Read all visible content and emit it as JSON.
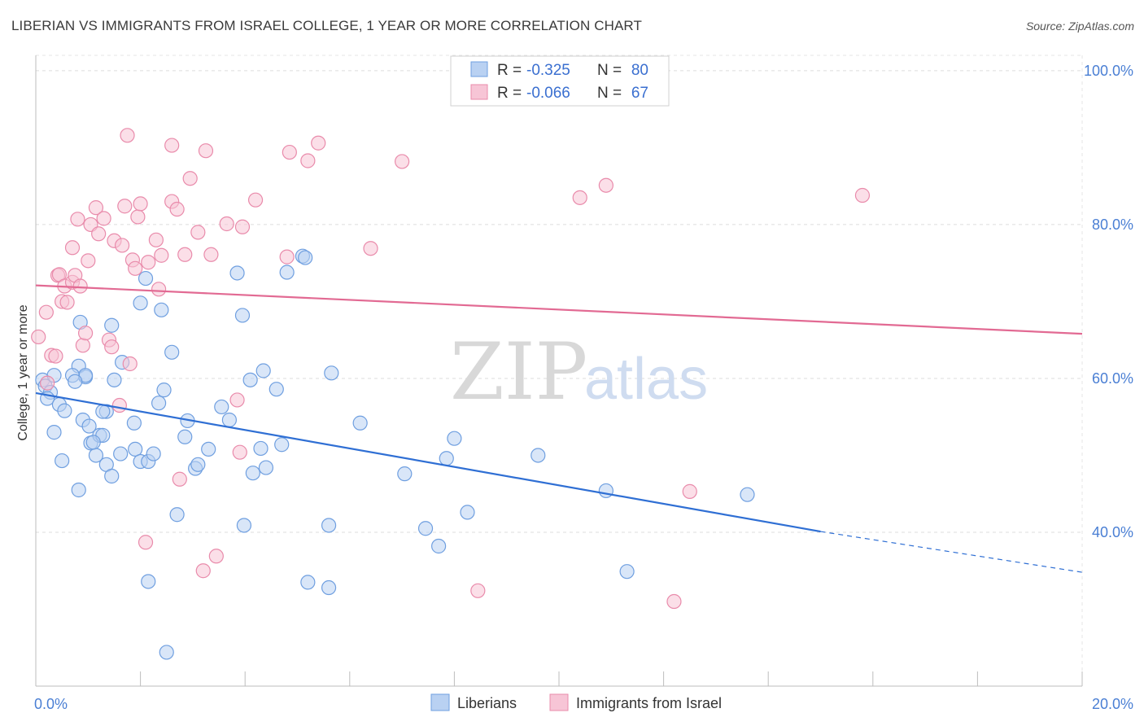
{
  "title": "LIBERIAN VS IMMIGRANTS FROM ISRAEL COLLEGE, 1 YEAR OR MORE CORRELATION CHART",
  "source": "Source: ZipAtlas.com",
  "watermark": {
    "zip": "ZIP",
    "atlas": "atlas"
  },
  "chart_data": {
    "type": "scatter",
    "title": "LIBERIAN VS IMMIGRANTS FROM ISRAEL COLLEGE, 1 YEAR OR MORE CORRELATION CHART",
    "xlabel": "",
    "ylabel": "College, 1 year or more",
    "xlim": [
      0,
      20
    ],
    "ylim": [
      20,
      102
    ],
    "x_ticks": [
      0,
      2,
      4,
      6,
      8,
      10,
      12,
      14,
      16,
      18,
      20
    ],
    "x_tick_labels": {
      "0": "0.0%",
      "20": "20.0%"
    },
    "y_ticks": [
      40,
      60,
      80,
      100
    ],
    "y_tick_labels": [
      "40.0%",
      "60.0%",
      "80.0%",
      "100.0%"
    ],
    "grid": true,
    "legend_placement": "top-center",
    "stats": [
      {
        "r_label": "R =",
        "r": "-0.325",
        "n_label": "N =",
        "n": "80"
      },
      {
        "r_label": "R =",
        "r": "-0.066",
        "n_label": "N =",
        "n": "67"
      }
    ],
    "series": [
      {
        "name": "Liberians",
        "color": "#6f9fe0",
        "fill": "#b9d1f2",
        "trend": {
          "x0": 0,
          "y0": 58.1,
          "x1": 15,
          "y1": 40.1,
          "dash_to_x": 20,
          "dash_to_y": 34.8
        },
        "points": [
          [
            0.13,
            59.8
          ],
          [
            0.18,
            59.0
          ],
          [
            0.28,
            58.2
          ],
          [
            0.22,
            57.4
          ],
          [
            0.45,
            56.6
          ],
          [
            0.55,
            55.8
          ],
          [
            0.35,
            53.0
          ],
          [
            0.5,
            49.3
          ],
          [
            0.82,
            61.6
          ],
          [
            0.95,
            60.2
          ],
          [
            1.5,
            59.8
          ],
          [
            1.65,
            62.1
          ],
          [
            0.95,
            60.4
          ],
          [
            0.7,
            60.4
          ],
          [
            0.75,
            59.6
          ],
          [
            0.9,
            54.6
          ],
          [
            1.02,
            53.8
          ],
          [
            1.05,
            51.6
          ],
          [
            1.15,
            50.0
          ],
          [
            1.22,
            52.6
          ],
          [
            1.28,
            52.6
          ],
          [
            1.35,
            48.8
          ],
          [
            1.45,
            47.3
          ],
          [
            1.62,
            50.2
          ],
          [
            1.35,
            55.7
          ],
          [
            0.85,
            67.3
          ],
          [
            1.45,
            66.9
          ],
          [
            0.82,
            45.5
          ],
          [
            1.9,
            50.8
          ],
          [
            1.88,
            54.2
          ],
          [
            2.0,
            49.2
          ],
          [
            2.15,
            49.2
          ],
          [
            2.25,
            50.2
          ],
          [
            2.35,
            56.8
          ],
          [
            2.45,
            58.5
          ],
          [
            2.6,
            63.4
          ],
          [
            2.0,
            69.8
          ],
          [
            2.4,
            68.9
          ],
          [
            2.7,
            42.3
          ],
          [
            2.85,
            52.4
          ],
          [
            2.9,
            54.5
          ],
          [
            3.05,
            48.3
          ],
          [
            3.1,
            48.8
          ],
          [
            3.3,
            50.8
          ],
          [
            3.55,
            56.3
          ],
          [
            3.7,
            54.6
          ],
          [
            3.85,
            73.7
          ],
          [
            3.95,
            68.2
          ],
          [
            3.98,
            40.9
          ],
          [
            4.15,
            47.7
          ],
          [
            4.1,
            59.8
          ],
          [
            4.3,
            50.9
          ],
          [
            4.4,
            48.4
          ],
          [
            4.35,
            61.0
          ],
          [
            4.6,
            58.6
          ],
          [
            4.7,
            51.4
          ],
          [
            4.8,
            73.8
          ],
          [
            5.1,
            75.9
          ],
          [
            5.15,
            75.7
          ],
          [
            5.2,
            33.5
          ],
          [
            5.6,
            32.8
          ],
          [
            5.6,
            40.9
          ],
          [
            5.65,
            60.7
          ],
          [
            6.2,
            54.2
          ],
          [
            7.05,
            47.6
          ],
          [
            7.45,
            40.5
          ],
          [
            7.7,
            38.2
          ],
          [
            7.85,
            49.6
          ],
          [
            8.0,
            52.2
          ],
          [
            8.25,
            42.6
          ],
          [
            9.6,
            50.0
          ],
          [
            10.9,
            45.4
          ],
          [
            11.3,
            34.9
          ],
          [
            13.6,
            44.9
          ],
          [
            2.1,
            73.0
          ],
          [
            0.35,
            60.4
          ],
          [
            2.15,
            33.6
          ],
          [
            2.5,
            24.4
          ],
          [
            1.1,
            51.7
          ],
          [
            1.28,
            55.7
          ]
        ]
      },
      {
        "name": "Immigrants from Israel",
        "color": "#e98bab",
        "fill": "#f7c5d6",
        "trend": {
          "x0": 0,
          "y0": 72.1,
          "x1": 20,
          "y1": 65.8
        },
        "points": [
          [
            0.05,
            65.4
          ],
          [
            0.2,
            68.6
          ],
          [
            0.22,
            59.4
          ],
          [
            0.3,
            63.0
          ],
          [
            0.38,
            62.9
          ],
          [
            0.42,
            73.4
          ],
          [
            0.45,
            73.5
          ],
          [
            0.5,
            70.0
          ],
          [
            0.55,
            72.0
          ],
          [
            0.6,
            69.9
          ],
          [
            0.7,
            72.5
          ],
          [
            0.7,
            77.0
          ],
          [
            0.75,
            73.4
          ],
          [
            0.8,
            80.7
          ],
          [
            0.85,
            72.0
          ],
          [
            0.9,
            64.3
          ],
          [
            0.95,
            65.9
          ],
          [
            1.0,
            75.3
          ],
          [
            1.05,
            80.0
          ],
          [
            1.15,
            82.2
          ],
          [
            1.2,
            78.8
          ],
          [
            1.3,
            80.8
          ],
          [
            1.4,
            65.0
          ],
          [
            1.45,
            64.1
          ],
          [
            1.5,
            77.9
          ],
          [
            1.6,
            56.5
          ],
          [
            1.65,
            77.3
          ],
          [
            1.7,
            82.4
          ],
          [
            1.75,
            91.6
          ],
          [
            1.8,
            61.9
          ],
          [
            1.85,
            75.4
          ],
          [
            1.9,
            74.3
          ],
          [
            1.95,
            81.0
          ],
          [
            2.0,
            82.7
          ],
          [
            2.1,
            38.7
          ],
          [
            2.15,
            75.1
          ],
          [
            2.3,
            78.0
          ],
          [
            2.35,
            71.6
          ],
          [
            2.4,
            76.0
          ],
          [
            2.6,
            83.0
          ],
          [
            2.6,
            90.3
          ],
          [
            2.7,
            82.0
          ],
          [
            2.75,
            46.9
          ],
          [
            2.85,
            76.1
          ],
          [
            2.95,
            86.0
          ],
          [
            3.1,
            79.0
          ],
          [
            3.2,
            35.0
          ],
          [
            3.25,
            89.6
          ],
          [
            3.35,
            76.1
          ],
          [
            3.45,
            36.9
          ],
          [
            3.65,
            80.1
          ],
          [
            3.85,
            57.2
          ],
          [
            3.9,
            50.4
          ],
          [
            3.95,
            79.7
          ],
          [
            4.2,
            83.2
          ],
          [
            4.8,
            75.8
          ],
          [
            4.85,
            89.4
          ],
          [
            5.2,
            88.3
          ],
          [
            5.4,
            90.6
          ],
          [
            6.4,
            76.9
          ],
          [
            7.0,
            88.2
          ],
          [
            8.45,
            32.4
          ],
          [
            10.4,
            83.5
          ],
          [
            10.9,
            85.1
          ],
          [
            12.2,
            31.0
          ],
          [
            12.5,
            45.3
          ],
          [
            15.8,
            83.8
          ]
        ]
      }
    ]
  }
}
